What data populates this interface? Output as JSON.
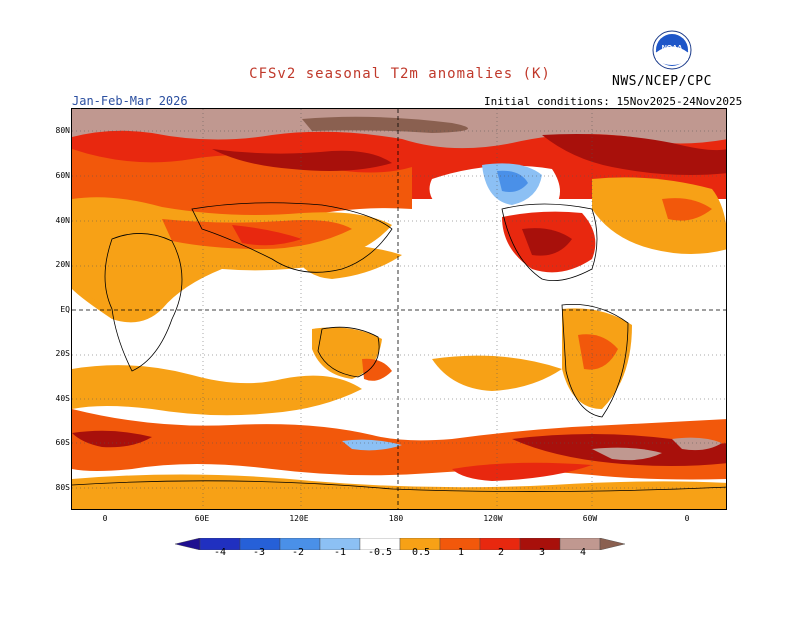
{
  "title": "CFSv2 seasonal T2m anomalies (K)",
  "season": "Jan-Feb-Mar 2026",
  "agency": "NWS/NCEP/CPC",
  "initial_conditions": "Initial conditions: 15Nov2025-24Nov2025",
  "logo": {
    "icon": "noaa-logo-icon",
    "text": "NOAA"
  },
  "colors": {
    "title": "#c0392b",
    "season": "#2b4fa0",
    "deep_blue": "#1f2fb0",
    "blue": "#2f6fe0",
    "mid_blue": "#4a90e8",
    "light_blue": "#8cc0f4",
    "white": "#ffffff",
    "orange": "#f7a116",
    "dark_orange": "#f2580b",
    "red": "#e8280f",
    "dark_red": "#a8100b",
    "brown": "#c09890",
    "dark_brown": "#8a6050"
  },
  "lat_labels": [
    "80N",
    "60N",
    "40N",
    "20N",
    "EQ",
    "20S",
    "40S",
    "60S",
    "80S"
  ],
  "lon_labels": [
    "0",
    "60E",
    "120E",
    "180",
    "120W",
    "60W",
    "0"
  ],
  "colorbar": {
    "labels": [
      "-4",
      "-3",
      "-2",
      "-1",
      "-0.5",
      "0.5",
      "1",
      "2",
      "3",
      "4"
    ],
    "bins": [
      {
        "range": "< -4",
        "color": "#1f0f90"
      },
      {
        "range": "-4 to -3",
        "color": "#2030c0"
      },
      {
        "range": "-3 to -2",
        "color": "#2660d8"
      },
      {
        "range": "-2 to -1",
        "color": "#4a90e8"
      },
      {
        "range": "-1 to -0.5",
        "color": "#8cc0f4"
      },
      {
        "range": "-0.5 to 0.5",
        "color": "#ffffff"
      },
      {
        "range": "0.5 to 1",
        "color": "#f7a116"
      },
      {
        "range": "1 to 2",
        "color": "#f2580b"
      },
      {
        "range": "2 to 3",
        "color": "#e8280f"
      },
      {
        "range": "3 to 4",
        "color": "#a8100b"
      },
      {
        "range": "4 to 5",
        "color": "#c09890"
      },
      {
        "range": "> 5",
        "color": "#8a6050"
      }
    ]
  }
}
